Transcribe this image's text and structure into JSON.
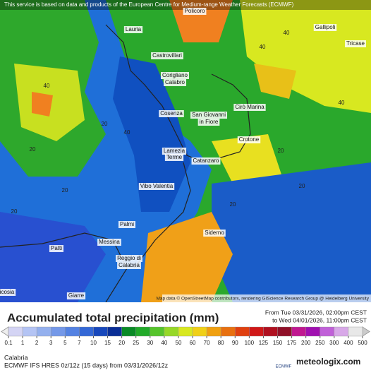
{
  "header": {
    "notice": "This service is based on data and products of the European Centre for Medium-range Weather Forecasts (ECMWF)",
    "attribution": "Map data © OpenStreetMap contributors, rendering GIScience Research Group @ Heidelberg University"
  },
  "places": [
    "Policoro",
    "Lauria",
    "Castrovillari",
    "Corigliano",
    "Calabro",
    "Gallipoli",
    "Tricase",
    "Cosenza",
    "San Giovanni",
    "in Fiore",
    "Cirò Marina",
    "Crotone",
    "Lamezia",
    "Terme",
    "Catanzaro",
    "Vibo Valentia",
    "Palmi",
    "Siderno",
    "Messina",
    "Reggio di",
    "Calabria",
    "Patti",
    "Giarre",
    "icosia"
  ],
  "contour_labels": [
    40,
    20,
    40,
    20,
    20,
    40,
    40,
    20,
    20,
    40,
    20,
    20
  ],
  "legend": {
    "title": "Accumulated total precipitation (mm)",
    "from": "From Tue 03/31/2026, 02:00pm CEST",
    "to": "to Wed 04/01/2026, 11:00pm CEST",
    "scale_labels": [
      0.1,
      1,
      2,
      3,
      5,
      7,
      10,
      15,
      20,
      25,
      30,
      40,
      50,
      60,
      70,
      80,
      90,
      100,
      125,
      150,
      175,
      200,
      250,
      300,
      400,
      500
    ],
    "colors": [
      "#d4d4f4",
      "#b4c4f4",
      "#94b0ee",
      "#7498e8",
      "#5482e2",
      "#3468d6",
      "#1848bc",
      "#0a2e96",
      "#0a8a26",
      "#22aa2a",
      "#56c42c",
      "#96d828",
      "#d8e820",
      "#f0d018",
      "#f0a010",
      "#e87010",
      "#e04010",
      "#d01818",
      "#b01020",
      "#901028",
      "#c01890",
      "#a010b0",
      "#c060d8",
      "#d8a8e8",
      "#e8e8e8"
    ],
    "region": "Calabria",
    "model": "ECMWF IFS HRES 0z/12z (15 days) from 03/31/2026/12z"
  },
  "logos": {
    "ecmwf": "ECMWF",
    "site": "meteologix.com"
  }
}
